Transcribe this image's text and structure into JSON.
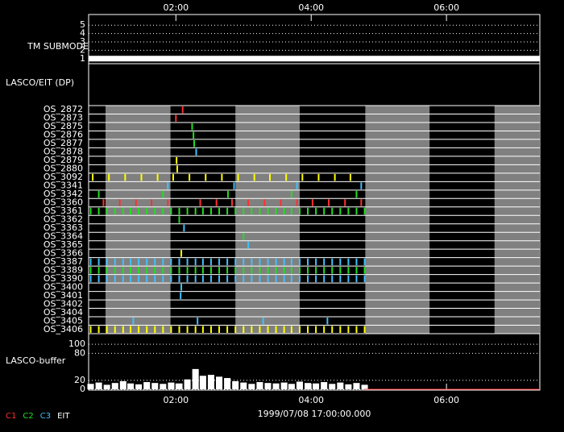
{
  "chart_data": {
    "type": "timeline",
    "xlim": [
      0.71,
      7.38
    ],
    "xticks": [
      {
        "value": 2,
        "label": "02:00"
      },
      {
        "value": 4,
        "label": "04:00"
      },
      {
        "value": 6,
        "label": "06:00"
      }
    ],
    "date": "1999/07/08 17:00:00.000",
    "shaded": [
      [
        0.96,
        1.92
      ],
      [
        2.88,
        3.83
      ],
      [
        4.8,
        5.75
      ],
      [
        6.71,
        7.38
      ]
    ],
    "tm_submode": {
      "label": "TM SUBMODE",
      "ylim": [
        0.5,
        5.5
      ],
      "yticks": [
        1,
        2,
        3,
        4,
        5
      ],
      "x": [
        0.71,
        7.38
      ],
      "values": [
        1,
        1
      ],
      "color": "#ffffff"
    },
    "dp": {
      "label": "LASCO/EIT (DP)",
      "rows": [
        {
          "name": "OS_2872",
          "color": "#ff3030",
          "times": [
            2.1
          ]
        },
        {
          "name": "OS_2873",
          "color": "#ff3030",
          "times": [
            2.0
          ]
        },
        {
          "name": "OS_2875",
          "color": "#20e020",
          "times": [
            2.24
          ]
        },
        {
          "name": "OS_2876",
          "color": "#20e020",
          "times": [
            2.26
          ]
        },
        {
          "name": "OS_2877",
          "color": "#20e020",
          "times": [
            2.27
          ]
        },
        {
          "name": "OS_2878",
          "color": "#40c0ff",
          "times": [
            2.3
          ]
        },
        {
          "name": "OS_2879",
          "color": "#ffff00",
          "times": [
            2.01
          ]
        },
        {
          "name": "OS_2880",
          "color": "#ffff00",
          "times": [
            2.02
          ]
        },
        {
          "name": "OS_3092",
          "color": "#ffff00",
          "times": [
            0.77,
            1.01,
            1.25,
            1.49,
            1.73,
            1.96,
            2.2,
            2.44,
            2.68,
            2.92,
            3.16,
            3.39,
            3.63,
            3.87,
            4.11,
            4.35,
            4.58
          ]
        },
        {
          "name": "OS_3341",
          "color": "#40c0ff",
          "times": [
            1.88,
            2.86,
            3.79,
            4.74
          ]
        },
        {
          "name": "OS_3342",
          "color": "#20e020",
          "times": [
            0.86,
            1.81,
            2.77,
            3.71,
            4.67
          ]
        },
        {
          "name": "OS_3360",
          "color": "#ff3030",
          "times": [
            0.93,
            1.17,
            1.41,
            1.64,
            1.88,
            2.36,
            2.6,
            2.83,
            3.07,
            3.31,
            3.55,
            3.79,
            4.02,
            4.26,
            4.5,
            4.74
          ]
        },
        {
          "name": "OS_3361",
          "color": "#20e020",
          "times": [
            0.74,
            0.86,
            0.98,
            1.1,
            1.22,
            1.33,
            1.45,
            1.57,
            1.69,
            1.81,
            1.93,
            2.05,
            2.17,
            2.29,
            2.4,
            2.52,
            2.64,
            2.76,
            2.88,
            3.0,
            3.12,
            3.24,
            3.36,
            3.48,
            3.6,
            3.71,
            3.83,
            3.95,
            4.07,
            4.19,
            4.31,
            4.43,
            4.55,
            4.67,
            4.79
          ]
        },
        {
          "name": "OS_3362",
          "color": "#20e020",
          "times": [
            2.05
          ]
        },
        {
          "name": "OS_3363",
          "color": "#40c0ff",
          "times": [
            2.12
          ]
        },
        {
          "name": "OS_3364",
          "color": "#20e020",
          "times": [
            3.0
          ]
        },
        {
          "name": "OS_3365",
          "color": "#40c0ff",
          "times": [
            3.07
          ]
        },
        {
          "name": "OS_3366",
          "color": "#ffff00",
          "times": [
            2.08
          ]
        },
        {
          "name": "OS_3387",
          "color": "#40c0ff",
          "times": [
            0.74,
            0.86,
            0.98,
            1.1,
            1.22,
            1.33,
            1.45,
            1.57,
            1.69,
            1.81,
            1.93,
            2.05,
            2.17,
            2.29,
            2.4,
            2.52,
            2.64,
            2.76,
            2.88,
            3.0,
            3.12,
            3.24,
            3.36,
            3.48,
            3.6,
            3.71,
            3.83,
            3.95,
            4.07,
            4.19,
            4.31,
            4.43,
            4.55,
            4.67,
            4.79
          ]
        },
        {
          "name": "OS_3389",
          "color": "#20e020",
          "times": [
            0.74,
            0.86,
            0.98,
            1.1,
            1.22,
            1.33,
            1.45,
            1.57,
            1.69,
            1.81,
            1.93,
            2.05,
            2.17,
            2.29,
            2.4,
            2.52,
            2.64,
            2.76,
            2.88,
            3.0,
            3.12,
            3.24,
            3.36,
            3.48,
            3.6,
            3.71,
            3.83,
            3.95,
            4.07,
            4.19,
            4.31,
            4.43,
            4.55,
            4.67,
            4.79
          ]
        },
        {
          "name": "OS_3390",
          "color": "#40c0ff",
          "times": [
            0.74,
            0.86,
            0.98,
            1.1,
            1.22,
            1.33,
            1.45,
            1.57,
            1.69,
            1.81,
            1.93,
            2.05,
            2.17,
            2.29,
            2.4,
            2.52,
            2.64,
            2.76,
            2.88,
            3.0,
            3.12,
            3.24,
            3.36,
            3.48,
            3.6,
            3.71,
            3.83,
            3.95,
            4.07,
            4.19,
            4.31,
            4.43,
            4.55,
            4.67,
            4.79
          ]
        },
        {
          "name": "OS_3400",
          "color": "#40c0ff",
          "times": [
            2.08
          ]
        },
        {
          "name": "OS_3401",
          "color": "#40c0ff",
          "times": [
            2.07
          ]
        },
        {
          "name": "OS_3402",
          "color": "#40c0ff",
          "times": []
        },
        {
          "name": "OS_3404",
          "color": "#40c0ff",
          "times": []
        },
        {
          "name": "OS_3405",
          "color": "#40c0ff",
          "times": [
            1.37,
            2.32,
            3.29,
            4.24
          ]
        },
        {
          "name": "OS_3406",
          "color": "#ffff00",
          "times": [
            0.74,
            0.86,
            0.98,
            1.1,
            1.22,
            1.33,
            1.45,
            1.57,
            1.69,
            1.81,
            1.93,
            2.05,
            2.17,
            2.29,
            2.4,
            2.52,
            2.64,
            2.76,
            2.88,
            3.0,
            3.12,
            3.24,
            3.36,
            3.48,
            3.6,
            3.71,
            3.83,
            3.95,
            4.07,
            4.19,
            4.31,
            4.43,
            4.55,
            4.67,
            4.79
          ]
        }
      ]
    },
    "buffer": {
      "label": "LASCO-buffer",
      "ylim": [
        0,
        120
      ],
      "yticks": [
        0,
        20,
        80,
        100
      ],
      "color": "#ffffff",
      "x": [
        0.74,
        0.86,
        0.98,
        1.1,
        1.22,
        1.33,
        1.45,
        1.57,
        1.69,
        1.81,
        1.93,
        2.05,
        2.17,
        2.29,
        2.4,
        2.52,
        2.64,
        2.76,
        2.88,
        3.0,
        3.12,
        3.24,
        3.36,
        3.48,
        3.6,
        3.71,
        3.83,
        3.95,
        4.07,
        4.19,
        4.31,
        4.43,
        4.55,
        4.67,
        4.79
      ],
      "values": [
        12,
        15,
        10,
        14,
        18,
        13,
        11,
        16,
        14,
        12,
        15,
        13,
        22,
        45,
        30,
        32,
        28,
        25,
        18,
        15,
        12,
        16,
        14,
        13,
        15,
        12,
        17,
        14,
        13,
        16,
        12,
        15,
        11,
        14,
        10
      ]
    },
    "legend": [
      {
        "name": "C1",
        "color": "#ff3030"
      },
      {
        "name": "C2",
        "color": "#20e020"
      },
      {
        "name": "C3",
        "color": "#40c0ff"
      },
      {
        "name": "EIT",
        "color": "#ffffff"
      }
    ]
  }
}
